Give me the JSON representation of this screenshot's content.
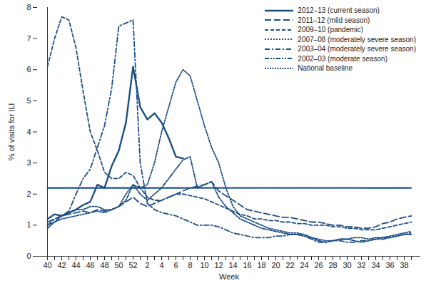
{
  "chart_data": {
    "type": "line",
    "x_label": "Week",
    "y_label": "% of visits for ILI",
    "categories": [
      "40",
      null,
      "42",
      null,
      "44",
      null,
      "46",
      null,
      "48",
      null,
      "50",
      null,
      "52",
      null,
      "2",
      null,
      "4",
      null,
      "6",
      null,
      "8",
      null,
      "10",
      null,
      "12",
      null,
      "14",
      null,
      "16",
      null,
      "18",
      null,
      "20",
      null,
      "22",
      null,
      "24",
      null,
      "26",
      null,
      "28",
      null,
      "30",
      null,
      "32",
      null,
      "34",
      null,
      "36",
      null,
      "38",
      null
    ],
    "ylim": [
      0,
      8
    ],
    "yticks": [
      0,
      1,
      2,
      3,
      4,
      5,
      6,
      7,
      8
    ],
    "legend": "top-right",
    "series": [
      {
        "name": "2012–13 (current season)",
        "color": "#1d4f86",
        "line_style": "solid",
        "values": [
          1.2,
          1.35,
          1.3,
          1.4,
          1.5,
          1.65,
          1.75,
          2.3,
          2.2,
          2.9,
          3.4,
          4.3,
          6.1,
          4.8,
          4.4,
          4.6,
          4.3,
          3.8,
          3.2,
          3.15,
          null,
          null,
          null,
          null,
          null,
          null,
          null,
          null,
          null,
          null,
          null,
          null,
          null,
          null,
          null,
          null,
          null,
          null,
          null,
          null,
          null,
          null,
          null,
          null,
          null,
          null,
          null,
          null,
          null,
          null,
          null,
          null
        ]
      },
      {
        "name": "2011–12 (mild season)",
        "color": "#1d4f86",
        "line_style": "longdash",
        "values": [
          1.1,
          1.2,
          1.3,
          1.35,
          1.4,
          1.45,
          1.4,
          1.5,
          1.45,
          1.5,
          1.6,
          1.75,
          1.9,
          1.7,
          1.6,
          1.7,
          1.8,
          1.9,
          2.0,
          2.1,
          2.2,
          2.25,
          2.3,
          2.4,
          2.1,
          1.95,
          1.8,
          1.65,
          1.5,
          1.45,
          1.4,
          1.35,
          1.3,
          1.25,
          1.25,
          1.2,
          1.15,
          1.1,
          1.1,
          1.05,
          1.0,
          1.0,
          0.95,
          0.95,
          0.9,
          0.9,
          0.95,
          1.05,
          1.1,
          1.2,
          1.25,
          1.3
        ]
      },
      {
        "name": "2009–10 (pandemic)",
        "color": "#1d4f86",
        "line_style": "dash",
        "values": [
          6.1,
          7.0,
          7.7,
          7.6,
          6.7,
          5.3,
          4.0,
          3.4,
          2.7,
          2.5,
          2.5,
          2.7,
          2.6,
          2.2,
          1.9,
          1.8,
          1.8,
          1.9,
          2.0,
          2.0,
          1.95,
          1.9,
          1.85,
          1.75,
          1.65,
          1.55,
          1.45,
          1.35,
          1.3,
          1.2,
          1.2,
          1.15,
          1.15,
          1.1,
          1.1,
          1.05,
          1.05,
          1.0,
          1.0,
          1.0,
          0.95,
          0.95,
          0.9,
          0.9,
          0.85,
          0.85,
          0.85,
          0.9,
          0.95,
          1.0,
          1.05,
          1.1
        ]
      },
      {
        "name": "2007–08 (moderately severe season)",
        "color": "#1d4f86",
        "line_style": "dot",
        "values": [
          1.0,
          1.1,
          1.2,
          1.25,
          1.3,
          1.35,
          1.4,
          1.45,
          1.4,
          1.5,
          1.6,
          2.0,
          2.3,
          2.2,
          2.3,
          3.0,
          4.0,
          4.8,
          5.6,
          6.0,
          5.8,
          5.0,
          4.2,
          3.5,
          3.0,
          2.2,
          1.6,
          1.3,
          1.2,
          1.1,
          1.0,
          0.9,
          0.85,
          0.8,
          0.75,
          0.75,
          0.7,
          0.6,
          0.55,
          0.5,
          0.5,
          0.55,
          0.55,
          0.6,
          0.6,
          0.55,
          0.6,
          0.6,
          0.65,
          0.7,
          0.75,
          0.8
        ]
      },
      {
        "name": "2003–04 (moderately severe season)",
        "color": "#1d4f86",
        "line_style": "dashdot",
        "values": [
          1.0,
          1.2,
          1.3,
          1.45,
          2.0,
          2.5,
          2.8,
          3.5,
          4.2,
          5.4,
          7.4,
          7.5,
          7.6,
          3.0,
          1.7,
          1.5,
          1.4,
          1.35,
          1.3,
          1.2,
          1.1,
          1.0,
          1.0,
          1.0,
          0.95,
          0.85,
          0.75,
          0.7,
          0.65,
          0.6,
          0.6,
          0.6,
          0.65,
          0.65,
          0.7,
          0.7,
          0.65,
          0.55,
          0.45,
          0.45,
          0.5,
          0.5,
          0.45,
          0.45,
          0.5,
          0.5,
          0.55,
          0.55,
          0.6,
          0.65,
          0.7,
          0.75
        ]
      },
      {
        "name": "2002–03 (moderate season)",
        "color": "#1d4f86",
        "line_style": "dashdotdot",
        "values": [
          0.9,
          1.1,
          1.3,
          1.4,
          1.5,
          1.5,
          1.6,
          1.6,
          1.5,
          1.5,
          1.6,
          1.8,
          2.3,
          2.0,
          1.8,
          2.0,
          2.2,
          2.5,
          2.8,
          3.1,
          3.2,
          2.2,
          2.3,
          2.4,
          1.9,
          1.6,
          1.4,
          1.2,
          1.1,
          1.0,
          0.9,
          0.85,
          0.8,
          0.75,
          0.7,
          0.7,
          0.65,
          0.6,
          0.5,
          0.45,
          0.5,
          0.55,
          0.55,
          0.5,
          0.45,
          0.5,
          0.55,
          0.6,
          0.6,
          0.65,
          0.7,
          0.7
        ]
      },
      {
        "name": "National baseline",
        "color": "#1d4f86",
        "line_style": "dotted",
        "values": [
          2.2,
          2.2,
          2.2,
          2.2,
          2.2,
          2.2,
          2.2,
          2.2,
          2.2,
          2.2,
          2.2,
          2.2,
          2.2,
          2.2,
          2.2,
          2.2,
          2.2,
          2.2,
          2.2,
          2.2,
          2.2,
          2.2,
          2.2,
          2.2,
          2.2,
          2.2,
          2.2,
          2.2,
          2.2,
          2.2,
          2.2,
          2.2,
          2.2,
          2.2,
          2.2,
          2.2,
          2.2,
          2.2,
          2.2,
          2.2,
          2.2,
          2.2,
          2.2,
          2.2,
          2.2,
          2.2,
          2.2,
          2.2,
          2.2,
          2.2,
          2.2,
          2.2
        ]
      }
    ]
  }
}
